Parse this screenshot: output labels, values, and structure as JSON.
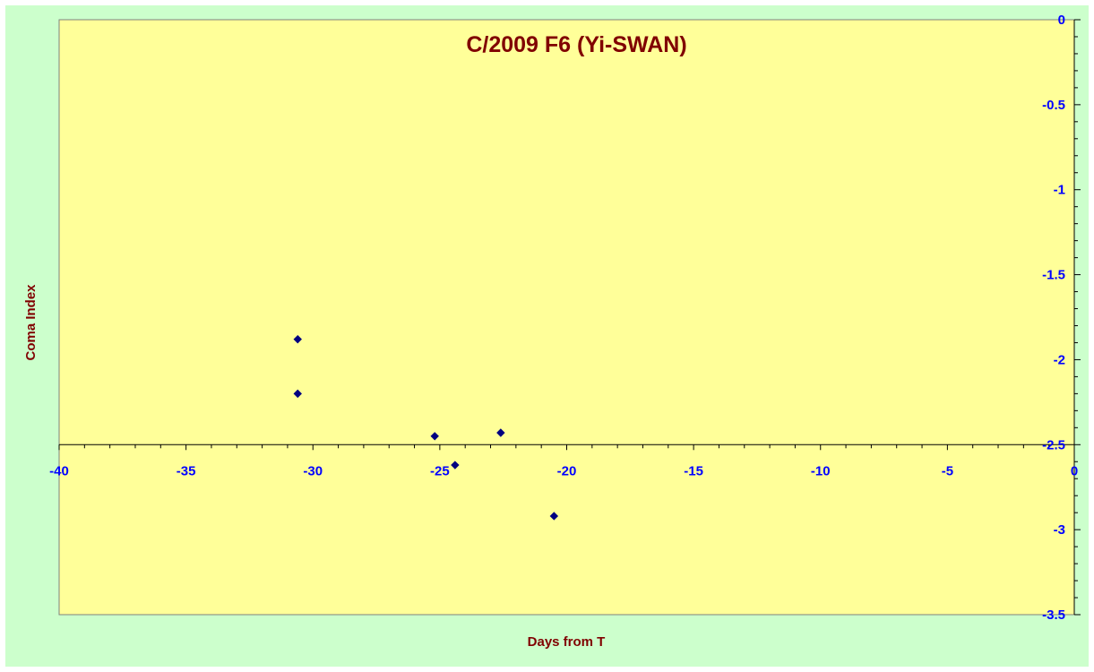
{
  "chart_data": {
    "type": "scatter",
    "title": "C/2009 F6 (Yi-SWAN)",
    "xlabel": "Days from T",
    "ylabel": "Coma Index",
    "xlim": [
      -40,
      0
    ],
    "ylim": [
      -3.5,
      0
    ],
    "x_ticks": [
      "-40",
      "-35",
      "-30",
      "-25",
      "-20",
      "-15",
      "-10",
      "-5",
      "0"
    ],
    "y_ticks": [
      "0",
      "-0.5",
      "-1",
      "-1.5",
      "-2",
      "-2.5",
      "-3",
      "-3.5"
    ],
    "x_axis_crosses_y_at": -2.5,
    "y_axis_position": "right",
    "grid": false,
    "legend": "none",
    "marker": "diamond",
    "series": [
      {
        "points": [
          {
            "x": -30.6,
            "y": -1.88
          },
          {
            "x": -30.6,
            "y": -2.2
          },
          {
            "x": -25.2,
            "y": -2.45
          },
          {
            "x": -24.4,
            "y": -2.62
          },
          {
            "x": -22.6,
            "y": -2.43
          },
          {
            "x": -20.5,
            "y": -2.92
          }
        ]
      }
    ],
    "colors": {
      "outer_background": "#ccffcc",
      "plot_background": "#ffff99",
      "axis_line": "#000000",
      "tick_labels": "#0000ff",
      "titles": "#800000",
      "marker": "#000080"
    }
  }
}
